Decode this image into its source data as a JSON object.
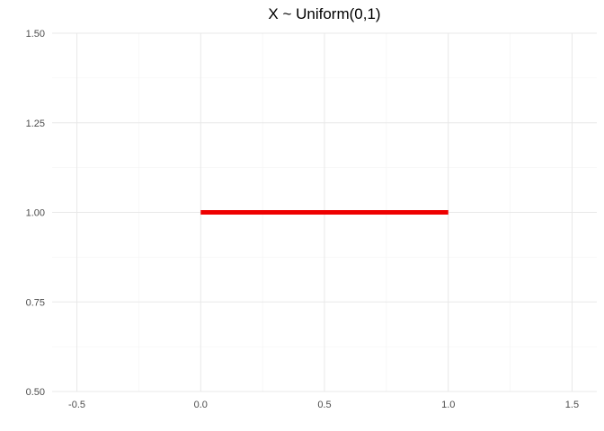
{
  "chart_data": {
    "type": "line",
    "title": "X ~ Uniform(0,1)",
    "xlabel": "",
    "ylabel": "",
    "xlim": [
      -0.6,
      1.6
    ],
    "ylim": [
      0.5,
      1.5
    ],
    "x_ticks": [
      -0.5,
      0.0,
      0.5,
      1.0,
      1.5
    ],
    "x_tick_labels": [
      "-0.5",
      "0.0",
      "0.5",
      "1.0",
      "1.5"
    ],
    "y_ticks": [
      0.5,
      0.75,
      1.0,
      1.25,
      1.5
    ],
    "y_tick_labels": [
      "0.50",
      "0.75",
      "1.00",
      "1.25",
      "1.50"
    ],
    "grid": true,
    "series": [
      {
        "x": [
          0.0,
          1.0
        ],
        "y": [
          1.0,
          1.0
        ],
        "color": "#ee0000"
      }
    ]
  }
}
